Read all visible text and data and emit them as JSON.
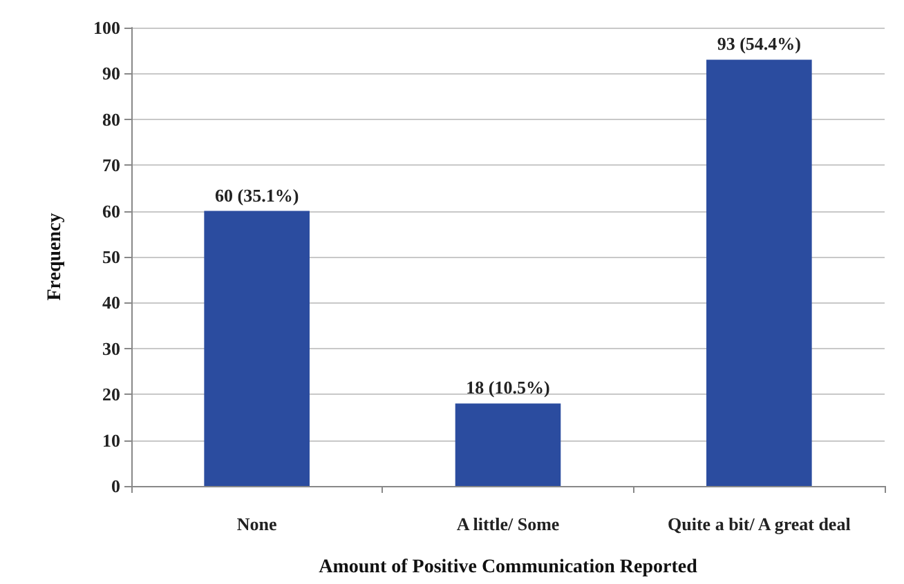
{
  "chart_data": {
    "type": "bar",
    "xlabel": "Amount of Positive Communication Reported",
    "ylabel": "Frequency",
    "categories": [
      "None",
      "A little/ Some",
      "Quite a bit/ A great deal"
    ],
    "values": [
      60,
      18,
      93
    ],
    "color": "#2b4c9f",
    "value_labels": [
      "60 (35.1%)",
      "18 (10.5%)",
      "93 (54.4%)"
    ],
    "ylim": [
      0,
      100
    ],
    "yticks": [
      0,
      10,
      20,
      30,
      40,
      50,
      60,
      70,
      80,
      90,
      100
    ],
    "grid": "y"
  }
}
